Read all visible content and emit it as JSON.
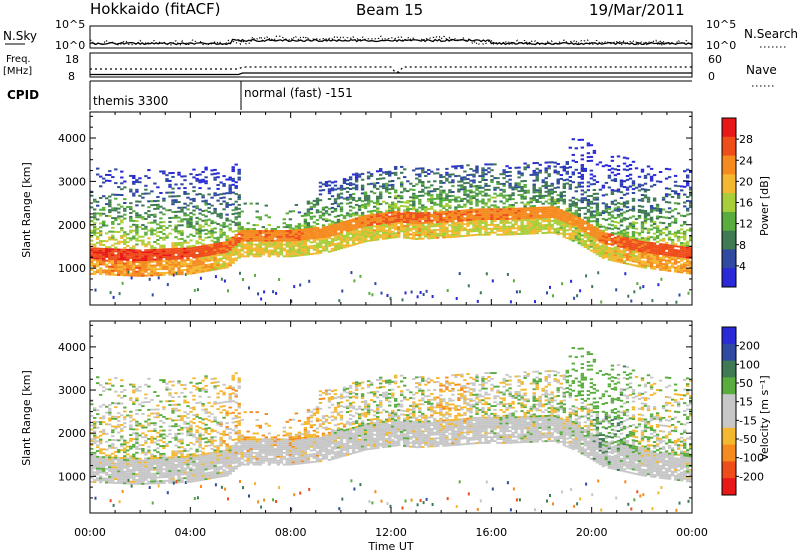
{
  "header": {
    "station": "Hokkaido (fitACF)",
    "beam": "Beam 15",
    "date": "19/Mar/2011"
  },
  "panels": {
    "nsky_label": "N.Sky",
    "nsearch_label": "N.Search",
    "nsky_ticks": [
      "10^5",
      "10^0"
    ],
    "nsearch_ticks": [
      "10^5",
      "10^0"
    ],
    "freq_label_1": "Freq.",
    "freq_label_2": "[MHz]",
    "freq_ticks": [
      "18",
      "8"
    ],
    "nave_label": "Nave",
    "nave_ticks": [
      "60",
      "0"
    ],
    "cpid_label": "CPID",
    "cpid_segments": [
      "themis 3300",
      "normal (fast) -151"
    ]
  },
  "colors": {
    "power_scale": [
      "#2a2ad8",
      "#2f4aa0",
      "#3f7a55",
      "#59ad3e",
      "#a8cf3a",
      "#f4b830",
      "#f58a1e",
      "#ef4e1a",
      "#e81818"
    ],
    "velocity_scale": [
      "#e81818",
      "#ef4e1a",
      "#f58a1e",
      "#f4b830",
      "#c7c7c7",
      "#c7c7c7",
      "#59ad3e",
      "#3f7a55",
      "#2f4aa0",
      "#2a2ad8"
    ],
    "ground_scatter": "#c6c6c6"
  },
  "chart_data": [
    {
      "type": "heatmap",
      "title": "Power",
      "xlabel": "",
      "ylabel": "Slant Range [km]",
      "xlim_hours": [
        0,
        24
      ],
      "ylim": [
        150,
        4600
      ],
      "x_tick_labels": [
        "00:00",
        "04:00",
        "08:00",
        "12:00",
        "16:00",
        "20:00",
        "00:00"
      ],
      "y_tick_labels": [
        "1000",
        "2000",
        "3000",
        "4000"
      ],
      "colorbar_label": "Power [dB]",
      "colorbar_ticks": [
        "28",
        "24",
        "20",
        "16",
        "12",
        "8",
        "4"
      ],
      "colorbar_range": [
        0,
        30
      ],
      "main_echo_band": {
        "time_hours": [
          0,
          2,
          4,
          5.5,
          6,
          8,
          9.5,
          11,
          12.3,
          13,
          14.5,
          15.5,
          16.5,
          18.5,
          19.5,
          20.5,
          22,
          24
        ],
        "range_km": [
          1200,
          1150,
          1200,
          1350,
          1600,
          1600,
          1700,
          1950,
          2050,
          2000,
          2050,
          2100,
          2100,
          2150,
          1900,
          1550,
          1350,
          1200
        ],
        "power_db": [
          28,
          28,
          27,
          25,
          24,
          24,
          23,
          24,
          25,
          25,
          24,
          24,
          24,
          23,
          22,
          24,
          26,
          27
        ]
      }
    },
    {
      "type": "heatmap",
      "title": "Velocity",
      "xlabel": "Time UT",
      "ylabel": "Slant Range [km]",
      "xlim_hours": [
        0,
        24
      ],
      "ylim": [
        150,
        4600
      ],
      "x_tick_labels": [
        "00:00",
        "04:00",
        "08:00",
        "12:00",
        "16:00",
        "20:00",
        "00:00"
      ],
      "y_tick_labels": [
        "1000",
        "2000",
        "3000",
        "4000"
      ],
      "colorbar_label": "Velocity [m s⁻¹]",
      "colorbar_ticks": [
        "200",
        "100",
        "50",
        "15",
        "-15",
        "-50",
        "-100",
        "-200"
      ],
      "colorbar_range": [
        -250,
        250
      ],
      "main_echo_band": {
        "time_hours": [
          0,
          2,
          4,
          5.5,
          6,
          8,
          9.5,
          11,
          12.3,
          13,
          14.5,
          15.5,
          16.5,
          18.5,
          19.5,
          20.5,
          22,
          24
        ],
        "range_km": [
          1200,
          1150,
          1200,
          1350,
          1600,
          1600,
          1700,
          1950,
          2050,
          2000,
          2050,
          2100,
          2100,
          2150,
          1900,
          1550,
          1350,
          1200
        ],
        "velocity_ms": [
          0,
          0,
          0,
          -20,
          -30,
          -40,
          -20,
          0,
          0,
          0,
          -40,
          0,
          0,
          0,
          0,
          40,
          0,
          0
        ]
      }
    }
  ]
}
